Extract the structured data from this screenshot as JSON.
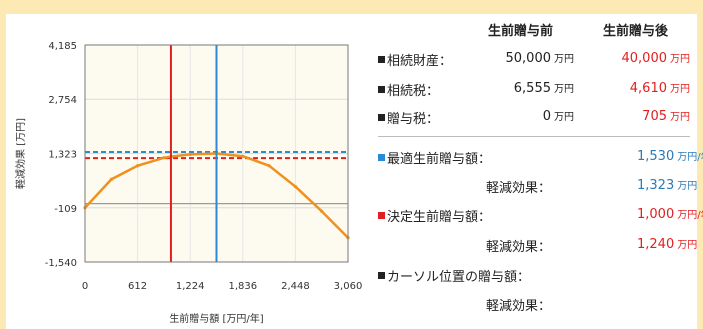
{
  "header": {
    "before": "生前贈与前",
    "after": "生前贈与後"
  },
  "rows": {
    "inheritance_assets": {
      "label": "相続財産：",
      "before": "50,000",
      "after": "40,000",
      "unit": "万円"
    },
    "inheritance_tax": {
      "label": "相続税：",
      "before": "6,555",
      "after": "4,610",
      "unit": "万円"
    },
    "gift_tax": {
      "label": "贈与税：",
      "before": "0",
      "after": "705",
      "unit": "万円"
    }
  },
  "optimal": {
    "label": "最適生前贈与額：",
    "value": "1,530",
    "unit": "万円/年",
    "effect_label": "軽減効果：",
    "effect_value": "1,323",
    "effect_unit": "万円"
  },
  "decided": {
    "label": "決定生前贈与額：",
    "value": "1,000",
    "unit": "万円/年",
    "effect_label": "軽減効果：",
    "effect_value": "1,240",
    "effect_unit": "万円"
  },
  "cursor": {
    "label": "カーソル位置の贈与額：",
    "effect_label": "軽減効果："
  },
  "colors": {
    "curve": "#f0901e",
    "optimal": "#2a8ad4",
    "decided": "#e02020",
    "plot_bg": "#fdfbf0",
    "frame": "#fde9b3"
  },
  "chart_data": {
    "type": "line",
    "xlabel": "生前贈与額 [万円/年]",
    "ylabel": "軽減効果 [万円]",
    "xlim": [
      0,
      3060
    ],
    "ylim": [
      -1540,
      4185
    ],
    "xticks": [
      "0",
      "612",
      "1,224",
      "1,836",
      "2,448",
      "3,060"
    ],
    "yticks": [
      "4,185",
      "2,754",
      "1,323",
      "-109",
      "-1,540"
    ],
    "x": [
      0,
      306,
      612,
      918,
      1000,
      1224,
      1530,
      1836,
      2142,
      2448,
      2754,
      3060
    ],
    "y": [
      -109,
      640,
      1000,
      1210,
      1240,
      1300,
      1323,
      1250,
      1000,
      450,
      -200,
      -900
    ],
    "optimal_x": 1530,
    "optimal_y": 1323,
    "decided_x": 1000,
    "decided_y": 1240
  }
}
